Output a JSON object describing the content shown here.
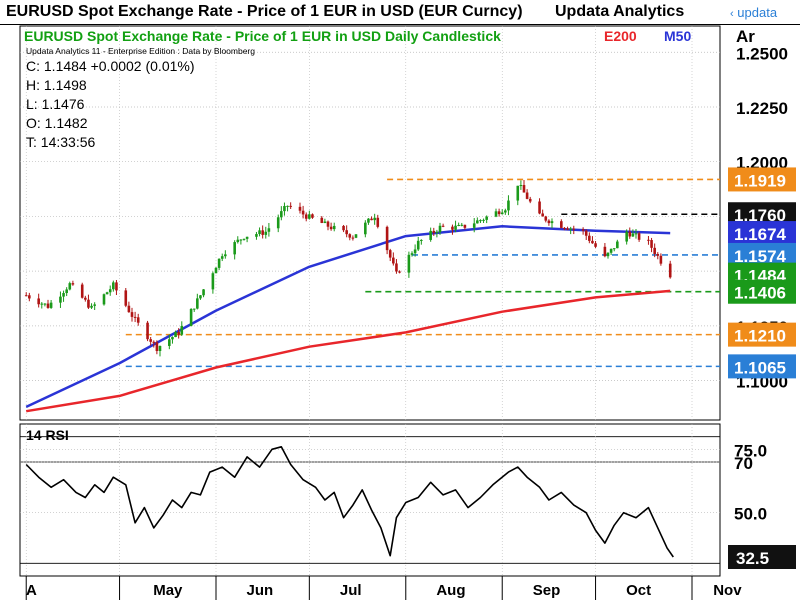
{
  "header": {
    "title": "EURUSD Spot Exchange Rate - Price of 1 EUR in USD (EUR Curncy)",
    "vendor": "Updata Analytics",
    "logo": "updata",
    "logo_icon": "lambda-chevron-icon"
  },
  "main_panel": {
    "chart_title": "EURUSD Spot Exchange Rate - Price of 1 EUR in USD Daily Candlestick",
    "legend_e200": "E200",
    "legend_m50": "M50",
    "axis_header": "Ar",
    "attribution": "Updata Analytics 11 - Enterprise Edition : Data by Bloomberg",
    "quote": {
      "close": "C: 1.1484  +0.0002 (0.01%)",
      "high": "H: 1.1498",
      "low": "L: 1.1476",
      "open": "O: 1.1482",
      "time": "T: 14:33:56"
    }
  },
  "rsi_panel": {
    "title": "14 RSI"
  },
  "colors": {
    "bull": "#1a9a1a",
    "bear": "#b01414",
    "e200": "#e8262b",
    "m50": "#2a34d6",
    "orange": "#f08c1a",
    "blue_dash": "#2a7fd6",
    "green_dash": "#1a9a1a",
    "black_dash": "#000000",
    "title_green": "#12a012",
    "e200_label": "#e8262b",
    "m50_label": "#2a34d6",
    "grid": "#b8b8b8"
  },
  "chart_data": [
    {
      "type": "candlestick",
      "title": "EURUSD Spot Exchange Rate - Price of 1 EUR in USD Daily Candlestick",
      "y_ticks": [
        "1.2500",
        "1.2250",
        "1.2000",
        "1.1750",
        "1.1500",
        "1.1250",
        "1.1000"
      ],
      "ylim": [
        1.082,
        1.262
      ],
      "x_ticks": [
        "A",
        "May",
        "Jun",
        "Jul",
        "Aug",
        "Sep",
        "Oct",
        "Nov"
      ],
      "grid": true,
      "close_path": [
        [
          "Apr 1",
          1.139
        ],
        [
          "Apr 8",
          1.134
        ],
        [
          "Apr 15",
          1.144
        ],
        [
          "Apr 22",
          1.133
        ],
        [
          "Apr 29",
          1.1435
        ],
        [
          "May 6",
          1.1275
        ],
        [
          "May 13",
          1.115
        ],
        [
          "May 20",
          1.122
        ],
        [
          "May 27",
          1.139
        ],
        [
          "Jun 3",
          1.158
        ],
        [
          "Jun 10",
          1.166
        ],
        [
          "Jun 17",
          1.168
        ],
        [
          "Jun 24",
          1.18
        ],
        [
          "Jul 1",
          1.1745
        ],
        [
          "Jul 8",
          1.17
        ],
        [
          "Jul 15",
          1.166
        ],
        [
          "Jul 22",
          1.1755
        ],
        [
          "Jul 29",
          1.1485
        ],
        [
          "Aug 5",
          1.163
        ],
        [
          "Aug 12",
          1.17
        ],
        [
          "Aug 19",
          1.17
        ],
        [
          "Aug 26",
          1.174
        ],
        [
          "Sep 2",
          1.179
        ],
        [
          "Sep 6",
          1.19
        ],
        [
          "Sep 13",
          1.175
        ],
        [
          "Sep 20",
          1.171
        ],
        [
          "Sep 27",
          1.168
        ],
        [
          "Oct 4",
          1.156
        ],
        [
          "Oct 11",
          1.168
        ],
        [
          "Oct 18",
          1.163
        ],
        [
          "Oct 25",
          1.1484
        ]
      ],
      "series": [
        {
          "name": "E200",
          "color": "#e8262b",
          "values": [
            [
              "Apr 1",
              1.086
            ],
            [
              "May 1",
              1.093
            ],
            [
              "Jun 1",
              1.106
            ],
            [
              "Jul 1",
              1.1155
            ],
            [
              "Aug 1",
              1.122
            ],
            [
              "Sep 1",
              1.1315
            ],
            [
              "Oct 1",
              1.138
            ],
            [
              "Oct 25",
              1.141
            ]
          ]
        },
        {
          "name": "M50",
          "color": "#2a34d6",
          "values": [
            [
              "Apr 1",
              1.088
            ],
            [
              "May 1",
              1.108
            ],
            [
              "Jun 1",
              1.132
            ],
            [
              "Jul 1",
              1.152
            ],
            [
              "Aug 1",
              1.166
            ],
            [
              "Sep 1",
              1.1705
            ],
            [
              "Oct 1",
              1.1685
            ],
            [
              "Oct 25",
              1.1674
            ]
          ]
        }
      ],
      "horizontal_lines": [
        {
          "value": 1.1919,
          "color": "#f08c1a",
          "label": "1.1919",
          "from": "Jul 26",
          "dash": true
        },
        {
          "value": 1.176,
          "color": "#000000",
          "label": "1.1760",
          "from": "Sep 20",
          "dash": true
        },
        {
          "value": 1.1674,
          "color": "#2a34d6",
          "label": "1.1674",
          "dash": false
        },
        {
          "value": 1.1574,
          "color": "#2a7fd6",
          "label": "1.1574",
          "from": "Aug 3",
          "dash": true
        },
        {
          "value": 1.1484,
          "color": "#1a9a1a",
          "label": "1.1484",
          "dash": false
        },
        {
          "value": 1.1406,
          "color": "#1a9a1a",
          "label": "1.1406",
          "from": "Jul 19",
          "dash": true
        },
        {
          "value": 1.121,
          "color": "#f08c1a",
          "label": "1.1210",
          "from": "May 3",
          "dash": true
        },
        {
          "value": 1.1065,
          "color": "#2a7fd6",
          "label": "1.1065",
          "from": "May 3",
          "dash": true
        }
      ]
    },
    {
      "type": "line",
      "title": "14 RSI",
      "y_ticks": [
        "75.0",
        "70",
        "50.0"
      ],
      "ylim": [
        25,
        85
      ],
      "current_label": "32.5",
      "reference_lines": [
        80,
        70,
        30
      ],
      "grid": true,
      "values": [
        [
          "Apr 1",
          69
        ],
        [
          "Apr 5",
          64
        ],
        [
          "Apr 9",
          60
        ],
        [
          "Apr 13",
          63
        ],
        [
          "Apr 17",
          58
        ],
        [
          "Apr 20",
          56
        ],
        [
          "Apr 23",
          61
        ],
        [
          "Apr 26",
          58
        ],
        [
          "Apr 29",
          64
        ],
        [
          "May 3",
          61
        ],
        [
          "May 6",
          46
        ],
        [
          "May 9",
          52
        ],
        [
          "May 12",
          44
        ],
        [
          "May 15",
          49
        ],
        [
          "May 18",
          55
        ],
        [
          "May 21",
          52
        ],
        [
          "May 24",
          58
        ],
        [
          "May 27",
          57
        ],
        [
          "May 30",
          66
        ],
        [
          "Jun 3",
          68
        ],
        [
          "Jun 7",
          64
        ],
        [
          "Jun 11",
          72
        ],
        [
          "Jun 15",
          68
        ],
        [
          "Jun 19",
          75
        ],
        [
          "Jun 22",
          76
        ],
        [
          "Jun 25",
          69
        ],
        [
          "Jun 29",
          63
        ],
        [
          "Jul 3",
          60
        ],
        [
          "Jul 6",
          55
        ],
        [
          "Jul 9",
          58
        ],
        [
          "Jul 12",
          48
        ],
        [
          "Jul 15",
          53
        ],
        [
          "Jul 18",
          59
        ],
        [
          "Jul 21",
          51
        ],
        [
          "Jul 24",
          44
        ],
        [
          "Jul 27",
          33
        ],
        [
          "Jul 29",
          48
        ],
        [
          "Aug 1",
          54
        ],
        [
          "Aug 5",
          56
        ],
        [
          "Aug 9",
          62
        ],
        [
          "Aug 13",
          57
        ],
        [
          "Aug 17",
          59
        ],
        [
          "Aug 21",
          52
        ],
        [
          "Aug 25",
          56
        ],
        [
          "Aug 29",
          61
        ],
        [
          "Sep 3",
          66
        ],
        [
          "Sep 6",
          68
        ],
        [
          "Sep 9",
          64
        ],
        [
          "Sep 13",
          60
        ],
        [
          "Sep 16",
          55
        ],
        [
          "Sep 20",
          58
        ],
        [
          "Sep 24",
          53
        ],
        [
          "Sep 28",
          50
        ],
        [
          "Oct 1",
          43
        ],
        [
          "Oct 4",
          38
        ],
        [
          "Oct 7",
          45
        ],
        [
          "Oct 10",
          50
        ],
        [
          "Oct 14",
          48
        ],
        [
          "Oct 18",
          52
        ],
        [
          "Oct 21",
          44
        ],
        [
          "Oct 24",
          36
        ],
        [
          "Oct 26",
          32.5
        ]
      ]
    }
  ]
}
